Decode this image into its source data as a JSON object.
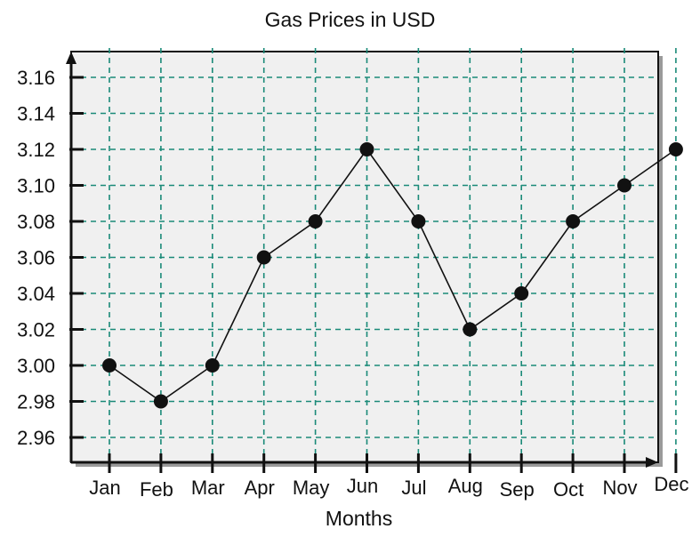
{
  "chart_data": {
    "type": "line",
    "title": "Gas Prices in USD",
    "xlabel": "Months",
    "ylabel": "",
    "categories": [
      "Jan",
      "Feb",
      "Mar",
      "Apr",
      "May",
      "Jun",
      "Jul",
      "Aug",
      "Sep",
      "Oct",
      "Nov",
      "Dec"
    ],
    "series": [
      {
        "values": [
          3.0,
          2.98,
          3.0,
          3.06,
          3.08,
          3.12,
          3.08,
          3.02,
          3.04,
          3.08,
          3.1,
          3.12
        ]
      }
    ],
    "yticks": [
      "2.96",
      "2.98",
      "3.00",
      "3.02",
      "3.04",
      "3.06",
      "3.08",
      "3.10",
      "3.12",
      "3.14",
      "3.16"
    ],
    "ylim": [
      2.95,
      3.17
    ],
    "grid": true,
    "colors": {
      "plot_background": "#f0f0f0",
      "grid": "#1a8a78",
      "line": "#111111",
      "marker": "#111111"
    }
  }
}
